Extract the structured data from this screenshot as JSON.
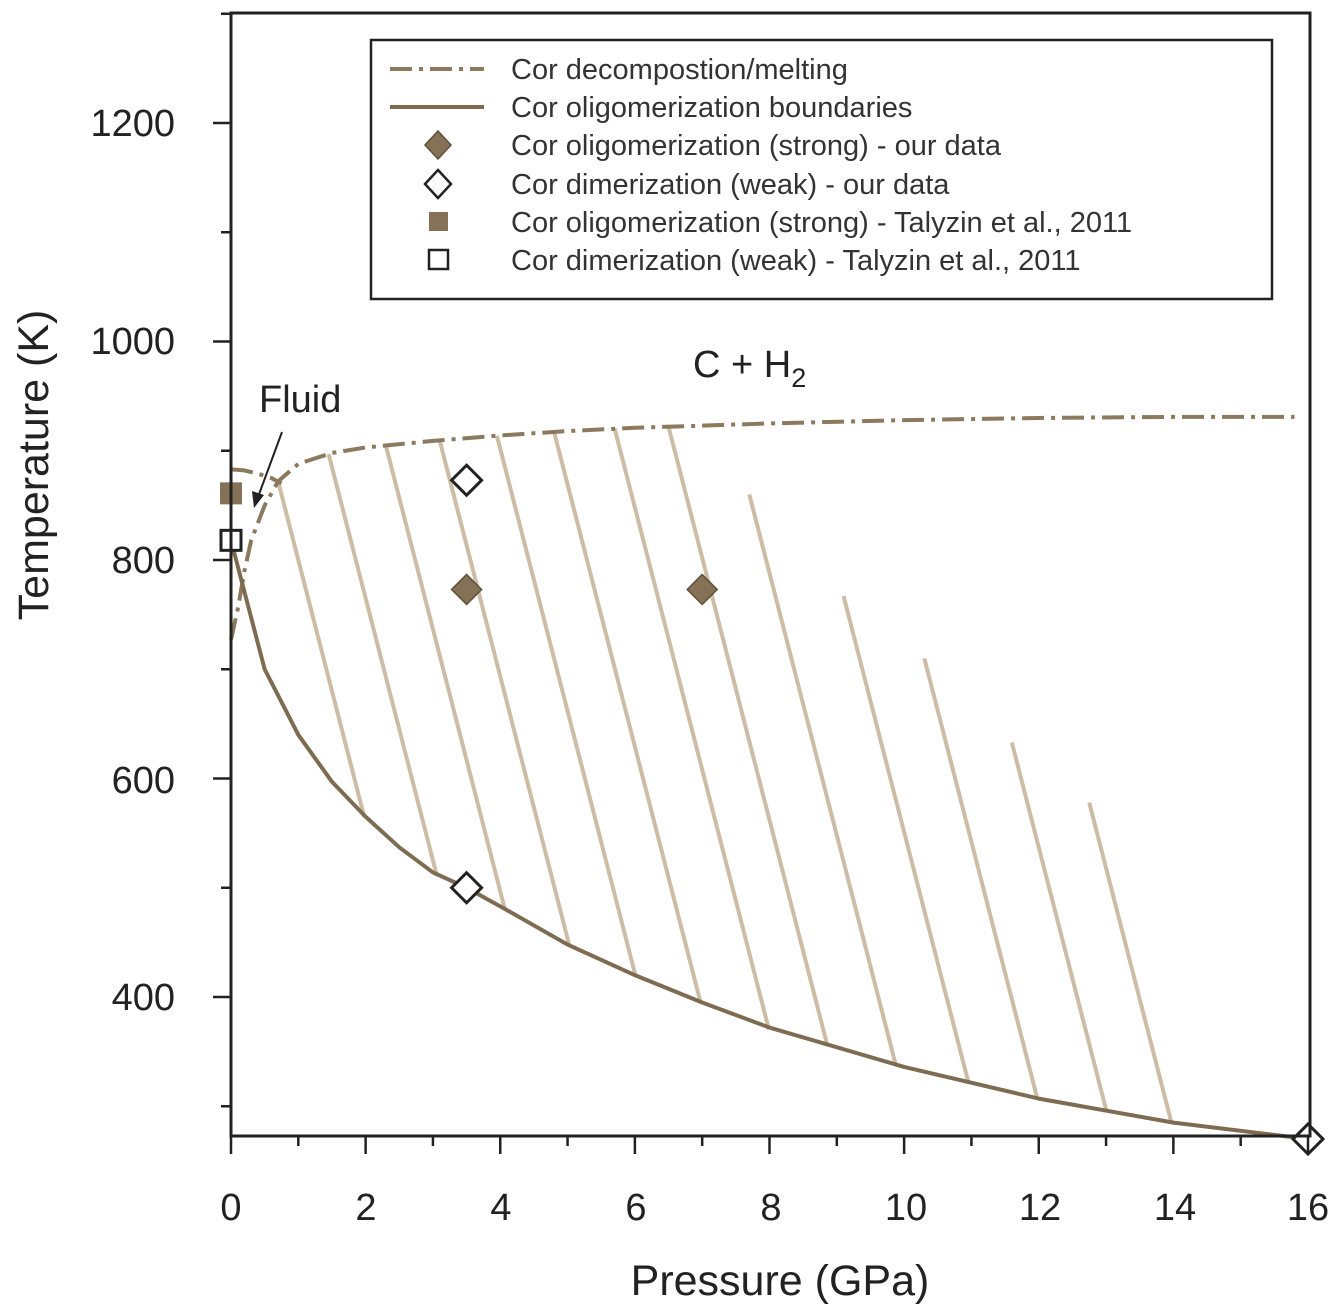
{
  "chart_data": {
    "type": "scatter",
    "xlabel": "Pressure (GPa)",
    "ylabel": "Temperature (K)",
    "xlim": [
      0,
      16
    ],
    "ylim": [
      270,
      1300
    ],
    "x_major_ticks": [
      0,
      2,
      4,
      6,
      8,
      10,
      12,
      14,
      16
    ],
    "x_tick_labels": [
      "0",
      "2",
      "4",
      "6",
      "8",
      "10",
      "12",
      "14",
      "16"
    ],
    "y_major_ticks": [
      400,
      600,
      800,
      1000,
      1200
    ],
    "y_tick_labels": [
      "400",
      "600",
      "800",
      "1000",
      "1200"
    ],
    "grid": false,
    "legend_position": "top-right",
    "annotations": {
      "fluid": "Fluid",
      "region": "C + H",
      "region_subscript": "2"
    },
    "series": [
      {
        "name": "Cor decompostion/melting",
        "style": "dash-dot-line",
        "color": "#8b7a5e",
        "x": [
          0,
          0.1,
          0.2,
          0.3,
          0.5,
          0.7,
          1.0,
          1.5,
          2,
          3,
          4,
          5,
          6,
          8,
          10,
          12,
          14,
          15.8
        ],
        "y": [
          727,
          755,
          790,
          818,
          850,
          872,
          888,
          898,
          903,
          909,
          914,
          918,
          921,
          925,
          928,
          930,
          931,
          931
        ]
      },
      {
        "name": "Cor decompostion/melting",
        "style": "dash-dot-line",
        "color": "#8b7a5e",
        "x": [
          0,
          0.2,
          0.4,
          0.6,
          0.75
        ],
        "y": [
          883,
          882,
          879,
          875,
          870
        ]
      },
      {
        "name": "Cor oligomerization boundaries",
        "style": "solid-line",
        "color": "#7d6c52",
        "x": [
          0,
          0.5,
          1,
          1.5,
          2,
          2.5,
          3,
          3.5,
          4,
          5,
          6,
          7,
          8,
          10,
          12,
          14,
          16
        ],
        "y": [
          818,
          700,
          640,
          597,
          565,
          537,
          514,
          500,
          483,
          448,
          420,
          395,
          372,
          336,
          307,
          285,
          270
        ]
      },
      {
        "name": "Cor oligomerization (strong) - our data",
        "marker": "filled-diamond",
        "color": "#857155",
        "x": [
          3.5,
          7
        ],
        "y": [
          773,
          773
        ]
      },
      {
        "name": "Cor dimerization (weak) - our data",
        "marker": "open-diamond",
        "color": "#222222",
        "x": [
          3.5,
          3.5,
          16
        ],
        "y": [
          873,
          500,
          270
        ]
      },
      {
        "name": "Cor oligomerization (strong) - Talyzin et al., 2011",
        "marker": "filled-square",
        "color": "#857155",
        "x": [
          0
        ],
        "y": [
          861
        ]
      },
      {
        "name": "Cor dimerization (weak) - Talyzin et al., 2011",
        "marker": "open-square",
        "color": "#222222",
        "x": [
          0
        ],
        "y": [
          818
        ]
      }
    ],
    "hatch_color": "#cdbda5"
  }
}
